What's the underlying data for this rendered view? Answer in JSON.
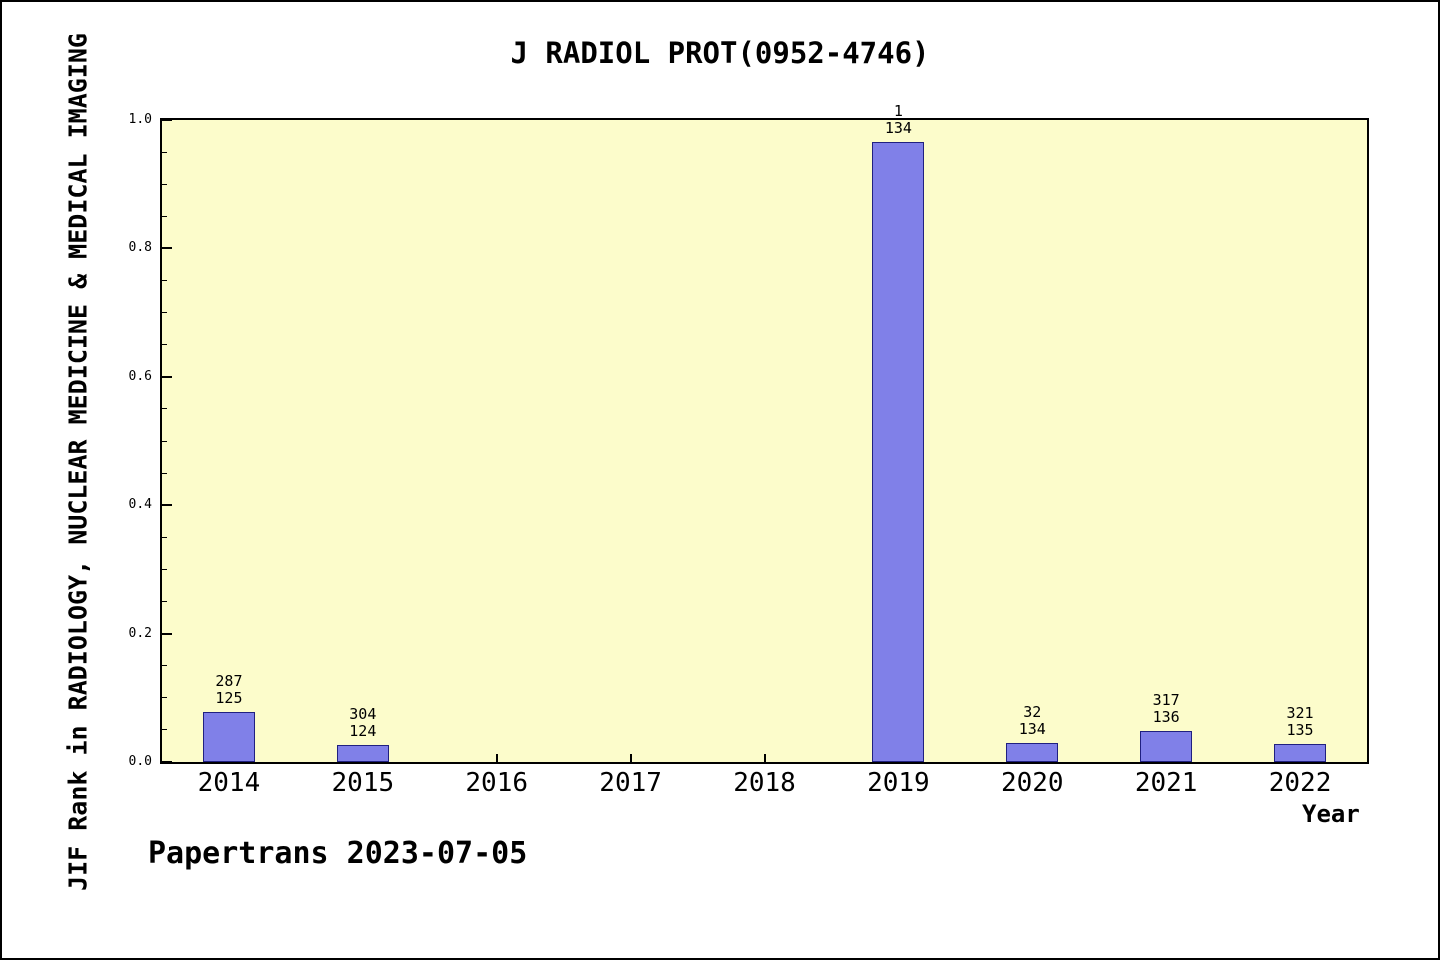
{
  "title": "J RADIOL PROT(0952-4746)",
  "y_axis_label": "JIF Rank in RADIOLOGY, NUCLEAR MEDICINE & MEDICAL IMAGING",
  "x_axis_label": "Year",
  "footer": "Papertrans 2023-07-05",
  "colors": {
    "page_bg": "#ffffff",
    "plot_bg": "#fcfccb",
    "bar_fill": "#8080e8",
    "bar_border": "#202080",
    "axis": "#000000"
  },
  "chart_data": {
    "type": "bar",
    "title": "J RADIOL PROT(0952-4746)",
    "xlabel": "Year",
    "ylabel": "JIF Rank in RADIOLOGY, NUCLEAR MEDICINE & MEDICAL IMAGING",
    "categories": [
      "2014",
      "2015",
      "2016",
      "2017",
      "2018",
      "2019",
      "2020",
      "2021",
      "2022"
    ],
    "values": [
      0.078,
      0.027,
      0,
      0,
      0,
      0.966,
      0.03,
      0.048,
      0.028
    ],
    "bar_labels": [
      [
        "287",
        "125"
      ],
      [
        "304",
        "124"
      ],
      null,
      null,
      null,
      [
        "1",
        "134"
      ],
      [
        "32",
        "134"
      ],
      [
        "317",
        "136"
      ],
      [
        "321",
        "135"
      ]
    ],
    "ylim": [
      0,
      1
    ],
    "ytick_values": [
      0.0,
      0.2,
      0.4,
      0.6,
      0.8,
      1.0
    ],
    "ytick_labels": [
      "0.0",
      "0.2",
      "0.4",
      "0.6",
      "0.8",
      "1.0"
    ],
    "minor_tick_step": 0.05,
    "grid": false,
    "legend": "none"
  }
}
